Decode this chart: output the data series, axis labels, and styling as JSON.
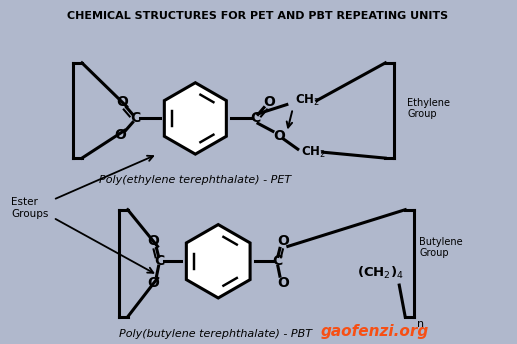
{
  "title": "CHEMICAL STRUCTURES FOR PET AND PBT REPEATING UNITS",
  "bg_color": "#b0b8cc",
  "title_color": "#000000",
  "struct_color": "#000000",
  "ring_fill": "#ffffff",
  "watermark": "gaofenzi.org",
  "watermark_color": "#ff4400",
  "label_pet": "Poly(ethylene terephthalate) - PET",
  "label_pbt": "Poly(butylene terephthalate) - PBT",
  "label_ester": "Ester\nGroups",
  "label_ethylene": "Ethylene\nGroup",
  "label_butylene": "Butylene\nGroup"
}
